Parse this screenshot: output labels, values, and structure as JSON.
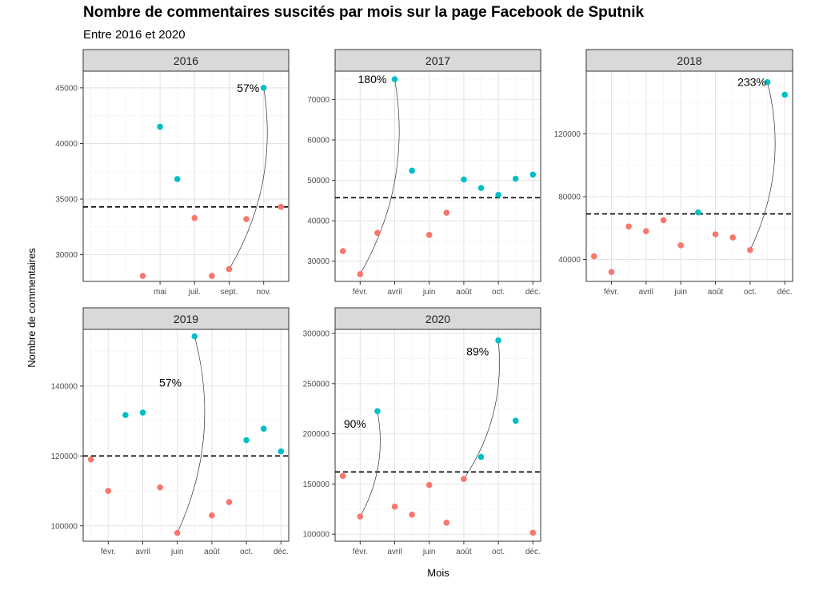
{
  "chart_data": {
    "type": "scatter",
    "title": "Nombre de commentaires suscités par mois sur la page Facebook de Sputnik",
    "subtitle": "Entre 2016 et 2020",
    "xlabel": "Mois",
    "ylabel": "Nombre de commentaires",
    "colors": {
      "below": "#F8766D",
      "above": "#00BFC4",
      "strip": "#D9D9D9"
    },
    "grid": true,
    "panels": [
      {
        "strip": "2016",
        "xticks": [
          {
            "m": 5,
            "label": "mai"
          },
          {
            "m": 7,
            "label": "juil."
          },
          {
            "m": 9,
            "label": "sept."
          },
          {
            "m": 11,
            "label": "nov."
          }
        ],
        "yticks": [
          30000,
          35000,
          40000,
          45000
        ],
        "ylim": [
          27600,
          46500
        ],
        "mean": 34300,
        "points": [
          {
            "m": 4,
            "v": 28100,
            "above": false
          },
          {
            "m": 5,
            "v": 41500,
            "above": true
          },
          {
            "m": 6,
            "v": 36800,
            "above": true
          },
          {
            "m": 7,
            "v": 33300,
            "above": false
          },
          {
            "m": 8,
            "v": 28100,
            "above": false
          },
          {
            "m": 9,
            "v": 28700,
            "above": false
          },
          {
            "m": 10,
            "v": 33200,
            "above": false
          },
          {
            "m": 11,
            "v": 45000,
            "above": true
          },
          {
            "m": 12,
            "v": 34300,
            "above": false
          }
        ],
        "annotations": [
          {
            "from": {
              "m": 9,
              "v": 28700
            },
            "to": {
              "m": 11,
              "v": 45000
            },
            "label": "57%",
            "lm": 10.1,
            "lv": 45000
          }
        ]
      },
      {
        "strip": "2017",
        "xticks": [
          {
            "m": 2,
            "label": "févr."
          },
          {
            "m": 4,
            "label": "avril"
          },
          {
            "m": 6,
            "label": "juin"
          },
          {
            "m": 8,
            "label": "août"
          },
          {
            "m": 10,
            "label": "oct."
          },
          {
            "m": 12,
            "label": "déc."
          }
        ],
        "yticks": [
          30000,
          40000,
          50000,
          60000,
          70000
        ],
        "ylim": [
          25000,
          77000
        ],
        "mean": 45700,
        "points": [
          {
            "m": 1,
            "v": 32500,
            "above": false
          },
          {
            "m": 2,
            "v": 26800,
            "above": false
          },
          {
            "m": 3,
            "v": 37000,
            "above": false
          },
          {
            "m": 4,
            "v": 75000,
            "above": true
          },
          {
            "m": 5,
            "v": 52400,
            "above": true
          },
          {
            "m": 6,
            "v": 36500,
            "above": false
          },
          {
            "m": 7,
            "v": 42000,
            "above": false
          },
          {
            "m": 8,
            "v": 50200,
            "above": true
          },
          {
            "m": 9,
            "v": 48100,
            "above": true
          },
          {
            "m": 10,
            "v": 46400,
            "above": true
          },
          {
            "m": 11,
            "v": 50400,
            "above": true
          },
          {
            "m": 12,
            "v": 51400,
            "above": true
          }
        ],
        "annotations": [
          {
            "from": {
              "m": 2,
              "v": 26800
            },
            "to": {
              "m": 4,
              "v": 75000
            },
            "label": "180%",
            "lm": 2.7,
            "lv": 75000
          }
        ]
      },
      {
        "strip": "2018",
        "xticks": [
          {
            "m": 2,
            "label": "févr."
          },
          {
            "m": 4,
            "label": "avril"
          },
          {
            "m": 6,
            "label": "juin"
          },
          {
            "m": 8,
            "label": "août"
          },
          {
            "m": 10,
            "label": "oct."
          },
          {
            "m": 12,
            "label": "déc."
          }
        ],
        "yticks": [
          40000,
          80000,
          120000
        ],
        "ylim": [
          26000,
          160000
        ],
        "mean": 69000,
        "points": [
          {
            "m": 1,
            "v": 42000,
            "above": false
          },
          {
            "m": 2,
            "v": 32000,
            "above": false
          },
          {
            "m": 3,
            "v": 61000,
            "above": false
          },
          {
            "m": 4,
            "v": 58000,
            "above": false
          },
          {
            "m": 5,
            "v": 65000,
            "above": false
          },
          {
            "m": 6,
            "v": 49000,
            "above": false
          },
          {
            "m": 7,
            "v": 70000,
            "above": true
          },
          {
            "m": 8,
            "v": 56000,
            "above": false
          },
          {
            "m": 9,
            "v": 54000,
            "above": false
          },
          {
            "m": 10,
            "v": 46000,
            "above": false
          },
          {
            "m": 11,
            "v": 153000,
            "above": true
          },
          {
            "m": 12,
            "v": 145000,
            "above": true
          }
        ],
        "annotations": [
          {
            "from": {
              "m": 10,
              "v": 46000
            },
            "to": {
              "m": 11,
              "v": 153000
            },
            "label": "233%",
            "lm": 10.1,
            "lv": 153000
          }
        ]
      },
      {
        "strip": "2019",
        "xticks": [
          {
            "m": 2,
            "label": "févr."
          },
          {
            "m": 4,
            "label": "avril"
          },
          {
            "m": 6,
            "label": "juin"
          },
          {
            "m": 8,
            "label": "août"
          },
          {
            "m": 10,
            "label": "oct."
          },
          {
            "m": 12,
            "label": "déc."
          }
        ],
        "yticks": [
          100000,
          120000,
          140000
        ],
        "ylim": [
          95600,
          156200
        ],
        "mean": 120000,
        "points": [
          {
            "m": 1,
            "v": 119000,
            "above": false
          },
          {
            "m": 2,
            "v": 110000,
            "above": false
          },
          {
            "m": 3,
            "v": 131700,
            "above": true
          },
          {
            "m": 4,
            "v": 132400,
            "above": true
          },
          {
            "m": 5,
            "v": 111000,
            "above": false
          },
          {
            "m": 6,
            "v": 98000,
            "above": false
          },
          {
            "m": 7,
            "v": 154200,
            "above": true
          },
          {
            "m": 8,
            "v": 103000,
            "above": false
          },
          {
            "m": 9,
            "v": 106800,
            "above": false
          },
          {
            "m": 10,
            "v": 124500,
            "above": true
          },
          {
            "m": 11,
            "v": 127800,
            "above": true
          },
          {
            "m": 12,
            "v": 121300,
            "above": true
          }
        ],
        "annotations": [
          {
            "from": {
              "m": 6,
              "v": 98000
            },
            "to": {
              "m": 7,
              "v": 154200
            },
            "label": "57%",
            "lm": 5.6,
            "lv": 141000
          }
        ]
      },
      {
        "strip": "2020",
        "xticks": [
          {
            "m": 2,
            "label": "févr."
          },
          {
            "m": 4,
            "label": "avril"
          },
          {
            "m": 6,
            "label": "juin"
          },
          {
            "m": 8,
            "label": "août"
          },
          {
            "m": 10,
            "label": "oct."
          },
          {
            "m": 12,
            "label": "déc."
          }
        ],
        "yticks": [
          100000,
          150000,
          200000,
          250000,
          300000
        ],
        "ylim": [
          93000,
          304000
        ],
        "mean": 162000,
        "points": [
          {
            "m": 1,
            "v": 158000,
            "above": false
          },
          {
            "m": 2,
            "v": 117600,
            "above": false
          },
          {
            "m": 3,
            "v": 222500,
            "above": true
          },
          {
            "m": 4,
            "v": 127500,
            "above": false
          },
          {
            "m": 5,
            "v": 119500,
            "above": false
          },
          {
            "m": 6,
            "v": 149000,
            "above": false
          },
          {
            "m": 7,
            "v": 111500,
            "above": false
          },
          {
            "m": 8,
            "v": 155000,
            "above": false
          },
          {
            "m": 9,
            "v": 177000,
            "above": true
          },
          {
            "m": 10,
            "v": 293000,
            "above": true
          },
          {
            "m": 11,
            "v": 213000,
            "above": true
          },
          {
            "m": 12,
            "v": 101500,
            "above": false
          }
        ],
        "annotations": [
          {
            "from": {
              "m": 2,
              "v": 117600
            },
            "to": {
              "m": 3,
              "v": 222500
            },
            "label": "90%",
            "lm": 1.7,
            "lv": 210000
          },
          {
            "from": {
              "m": 8,
              "v": 155000
            },
            "to": {
              "m": 10,
              "v": 293000
            },
            "label": "89%",
            "lm": 8.8,
            "lv": 282000
          }
        ]
      }
    ]
  }
}
